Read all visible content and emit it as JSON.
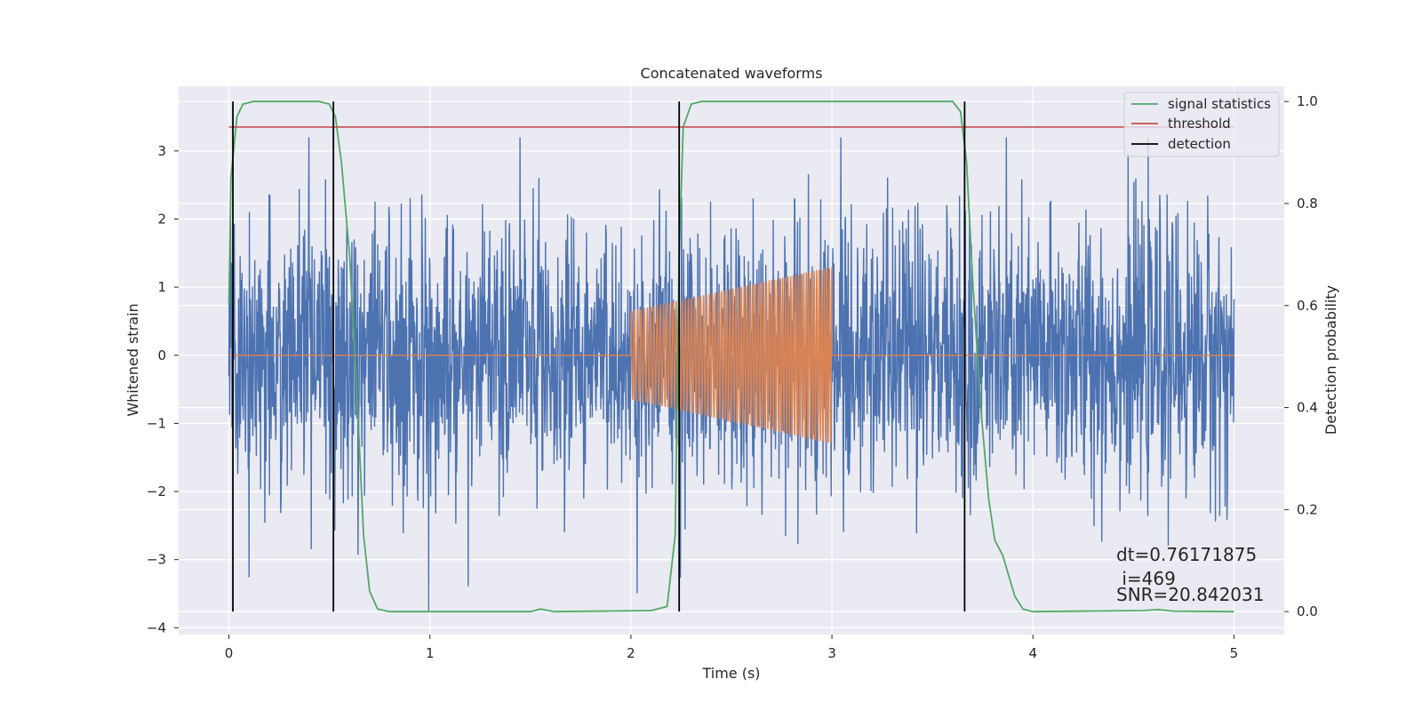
{
  "chart_data": {
    "type": "line",
    "title": "Concatenated waveforms",
    "xlabel": "Time (s)",
    "ylabel": "Whitened strain",
    "y2label": "Detection probability",
    "xlim": [
      -0.25,
      5.25
    ],
    "ylim": [
      -4.1,
      3.95
    ],
    "y2lim": [
      -0.045,
      1.03
    ],
    "xticks": [
      0,
      1,
      2,
      3,
      4,
      5
    ],
    "yticks": [
      -4,
      -3,
      -2,
      -1,
      0,
      1,
      2,
      3
    ],
    "y2ticks": [
      0.0,
      0.2,
      0.4,
      0.6,
      0.8,
      1.0
    ],
    "grid": true,
    "legend_position": "top-right",
    "legend": [
      "signal statistics",
      "threshold",
      "detection"
    ],
    "threshold": 0.95,
    "detections": [
      0.02,
      0.52,
      2.24,
      3.66
    ],
    "noise_strain": {
      "x_range": [
        0,
        5
      ],
      "approx_amplitude_range": [
        -3.75,
        3.2
      ],
      "note_samples": "dense whitened noise trace"
    },
    "injected_signal": {
      "x_range": [
        2.0,
        3.0
      ],
      "amplitude_start": 0.65,
      "amplitude_end": 1.3
    },
    "signal_statistics": [
      [
        0.0,
        0.6
      ],
      [
        0.01,
        0.85
      ],
      [
        0.04,
        0.97
      ],
      [
        0.07,
        0.995
      ],
      [
        0.12,
        1.0
      ],
      [
        0.45,
        1.0
      ],
      [
        0.5,
        0.995
      ],
      [
        0.53,
        0.97
      ],
      [
        0.56,
        0.88
      ],
      [
        0.6,
        0.7
      ],
      [
        0.64,
        0.4
      ],
      [
        0.67,
        0.15
      ],
      [
        0.7,
        0.04
      ],
      [
        0.74,
        0.005
      ],
      [
        0.8,
        0.0
      ],
      [
        1.5,
        0.0
      ],
      [
        1.55,
        0.005
      ],
      [
        1.62,
        0.0
      ],
      [
        2.1,
        0.002
      ],
      [
        2.18,
        0.01
      ],
      [
        2.22,
        0.15
      ],
      [
        2.24,
        0.7
      ],
      [
        2.26,
        0.95
      ],
      [
        2.3,
        0.995
      ],
      [
        2.35,
        1.0
      ],
      [
        3.6,
        1.0
      ],
      [
        3.64,
        0.98
      ],
      [
        3.67,
        0.88
      ],
      [
        3.7,
        0.65
      ],
      [
        3.74,
        0.4
      ],
      [
        3.78,
        0.22
      ],
      [
        3.81,
        0.14
      ],
      [
        3.85,
        0.11
      ],
      [
        3.88,
        0.07
      ],
      [
        3.91,
        0.03
      ],
      [
        3.95,
        0.005
      ],
      [
        4.0,
        0.0
      ],
      [
        4.55,
        0.002
      ],
      [
        4.62,
        0.004
      ],
      [
        4.7,
        0.001
      ],
      [
        5.0,
        0.0
      ]
    ],
    "annotation": [
      "dt=0.76171875",
      " i=469",
      "SNR=20.842031"
    ],
    "colors": {
      "noise": "#4c72b0",
      "signal": "#dd8452",
      "signal_statistics": "#55a868",
      "threshold": "#c44e52",
      "detection": "#000000",
      "plot_background": "#eaeaf2"
    }
  }
}
